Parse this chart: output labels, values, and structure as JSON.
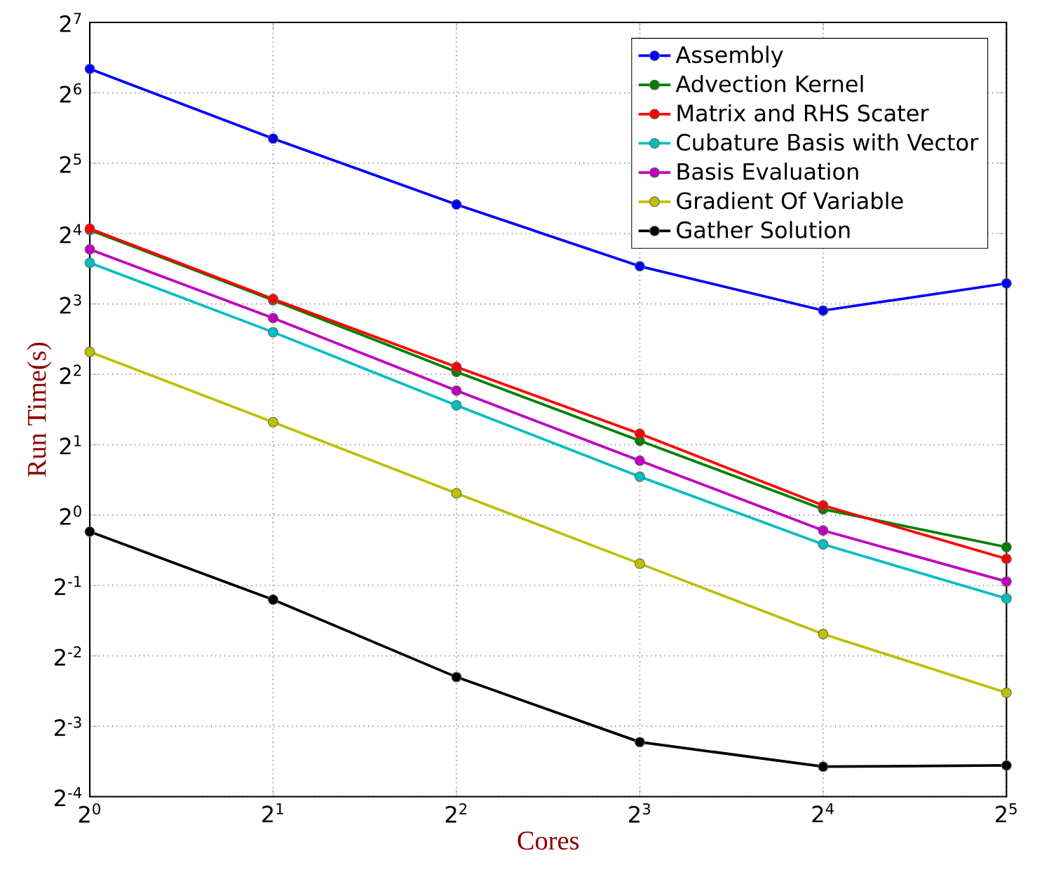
{
  "chart_data": {
    "type": "line",
    "xlabel": "Cores",
    "ylabel": "Run Time(s)",
    "log": "xy",
    "grid": true,
    "legend": "top right",
    "marker": "circle",
    "line_style": "solid",
    "x": [
      1,
      2,
      4,
      8,
      16,
      32
    ],
    "xlim": [
      1,
      32
    ],
    "ylim": [
      0.0625,
      128
    ],
    "xticks": [
      {
        "value": 1,
        "label": "2$^{0}$"
      },
      {
        "value": 2,
        "label": "2$^{1}$"
      },
      {
        "value": 4,
        "label": "2$^{2}$"
      },
      {
        "value": 8,
        "label": "2$^{3}$"
      },
      {
        "value": 16,
        "label": "2$^{4}$"
      },
      {
        "value": 32,
        "label": "2$^{5}$"
      }
    ],
    "yticks": [
      {
        "value": 0.0625,
        "label": "2$^{-4}$"
      },
      {
        "value": 0.125,
        "label": "2$^{-3}$"
      },
      {
        "value": 0.25,
        "label": "2$^{-2}$"
      },
      {
        "value": 0.5,
        "label": "2$^{-1}$"
      },
      {
        "value": 1,
        "label": "2$^{0}$"
      },
      {
        "value": 2,
        "label": "2$^{1}$"
      },
      {
        "value": 4,
        "label": "2$^{2}$"
      },
      {
        "value": 8,
        "label": "2$^{3}$"
      },
      {
        "value": 16,
        "label": "2$^{4}$"
      },
      {
        "value": 32,
        "label": "2$^{5}$"
      },
      {
        "value": 64,
        "label": "2$^{6}$"
      },
      {
        "value": 128,
        "label": "2$^{7}$"
      }
    ],
    "series": [
      {
        "name": "Assembly",
        "color": "#0000ff",
        "values": [
          81,
          40.8,
          21.3,
          11.6,
          7.5,
          9.8
        ]
      },
      {
        "name": "Advection Kernel",
        "color": "#008000",
        "values": [
          16.6,
          8.3,
          4.1,
          2.08,
          1.06,
          0.73
        ]
      },
      {
        "name": "Matrix and RHS Scater",
        "color": "#ff0000",
        "values": [
          16.8,
          8.4,
          4.3,
          2.23,
          1.1,
          0.65
        ]
      },
      {
        "name": "Cubature Basis with Vector",
        "color": "#00bfbf",
        "values": [
          12.0,
          6.06,
          2.95,
          1.46,
          0.75,
          0.44
        ]
      },
      {
        "name": "Basis Evaluation",
        "color": "#bf00bf",
        "values": [
          13.7,
          6.96,
          3.41,
          1.71,
          0.86,
          0.52
        ]
      },
      {
        "name": "Gradient Of Variable",
        "color": "#bfbf00",
        "values": [
          4.99,
          2.5,
          1.24,
          0.62,
          0.31,
          0.174
        ]
      },
      {
        "name": "Gather Solution",
        "color": "#000000",
        "values": [
          0.85,
          0.435,
          0.203,
          0.107,
          0.084,
          0.085
        ]
      }
    ]
  }
}
